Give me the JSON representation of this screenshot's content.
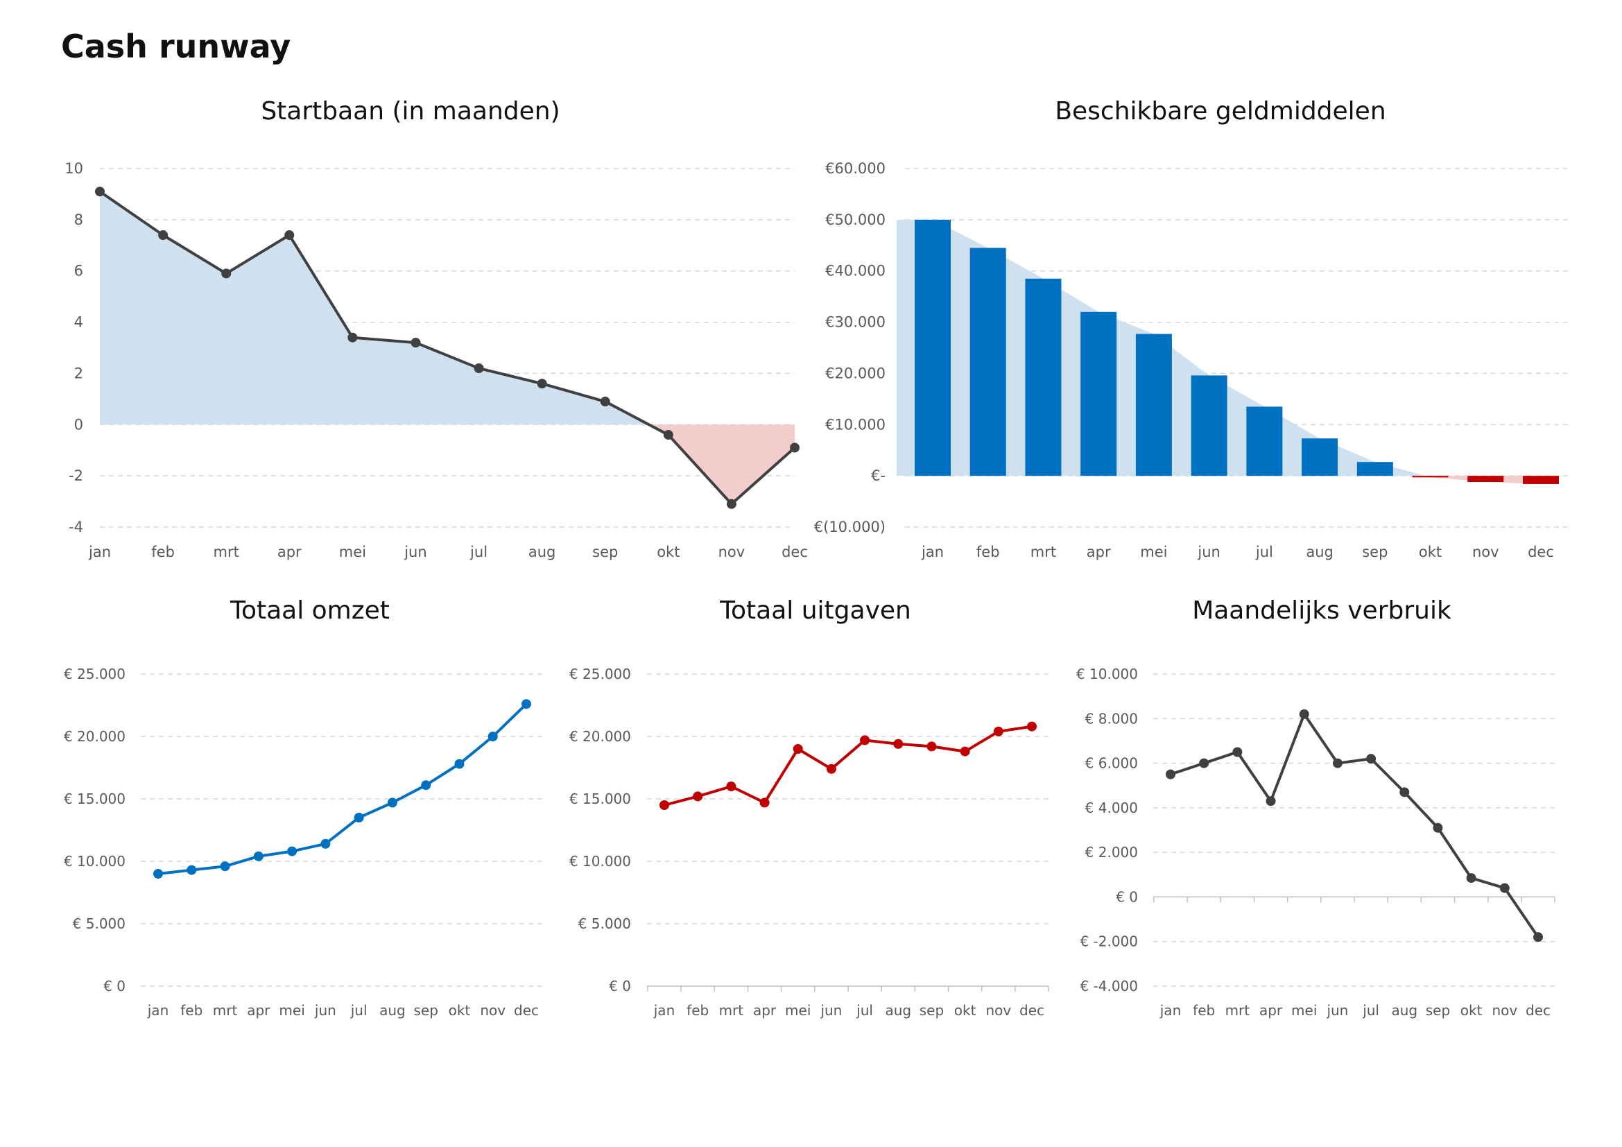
{
  "page": {
    "title": "Cash runway"
  },
  "colors": {
    "dark": "#404040",
    "blue": "#0070c0",
    "red": "#c00000",
    "area_blue": "#cfe0ef",
    "area_red": "#f3cccc",
    "grid": "#d6d6d6"
  },
  "chart_data": [
    {
      "id": "startbaan",
      "type": "line",
      "title": "Startbaan (in maanden)",
      "categories": [
        "jan",
        "feb",
        "mrt",
        "apr",
        "mei",
        "jun",
        "jul",
        "aug",
        "sep",
        "okt",
        "nov",
        "dec"
      ],
      "series": [
        {
          "values": [
            9.1,
            7.4,
            5.9,
            7.4,
            3.4,
            3.2,
            2.2,
            1.6,
            0.9,
            -0.4,
            -3.1,
            -0.9
          ]
        }
      ],
      "ylim": [
        -4,
        10
      ],
      "yticks": [
        10,
        8,
        6,
        4,
        2,
        0,
        -2,
        -4
      ],
      "ytick_labels": [
        "10",
        "8",
        "6",
        "4",
        "2",
        "0",
        "-2",
        "-4"
      ],
      "grid": true,
      "area_fill": true
    },
    {
      "id": "geldmiddelen",
      "type": "bar",
      "title": "Beschikbare geldmiddelen",
      "categories": [
        "jan",
        "feb",
        "mrt",
        "apr",
        "mei",
        "jun",
        "jul",
        "aug",
        "sep",
        "okt",
        "nov",
        "dec"
      ],
      "series": [
        {
          "values": [
            50000,
            44500,
            38500,
            32000,
            27700,
            19600,
            13500,
            7300,
            2700,
            -300,
            -1200,
            -1600
          ]
        }
      ],
      "ylim": [
        -10000,
        60000
      ],
      "yticks": [
        60000,
        50000,
        40000,
        30000,
        20000,
        10000,
        0,
        -10000
      ],
      "ytick_labels": [
        "€60.000",
        "€50.000",
        "€40.000",
        "€30.000",
        "€20.000",
        "€10.000",
        "€-",
        "€(10.000)"
      ],
      "grid": true,
      "area_fill": true
    },
    {
      "id": "omzet",
      "type": "line",
      "title": "Totaal omzet",
      "categories": [
        "jan",
        "feb",
        "mrt",
        "apr",
        "mei",
        "jun",
        "jul",
        "aug",
        "sep",
        "okt",
        "nov",
        "dec"
      ],
      "series": [
        {
          "values": [
            9000,
            9300,
            9600,
            10400,
            10800,
            11400,
            13500,
            14700,
            16100,
            17800,
            20000,
            22600
          ]
        }
      ],
      "ylim": [
        0,
        25000
      ],
      "yticks": [
        25000,
        20000,
        15000,
        10000,
        5000,
        0
      ],
      "ytick_labels": [
        "€ 25.000",
        "€ 20.000",
        "€ 15.000",
        "€ 10.000",
        "€ 5.000",
        "€ 0"
      ],
      "grid": true
    },
    {
      "id": "uitgaven",
      "type": "line",
      "title": "Totaal uitgaven",
      "categories": [
        "jan",
        "feb",
        "mrt",
        "apr",
        "mei",
        "jun",
        "jul",
        "aug",
        "sep",
        "okt",
        "nov",
        "dec"
      ],
      "series": [
        {
          "values": [
            14500,
            15200,
            16000,
            14700,
            19000,
            17400,
            19700,
            19400,
            19200,
            18800,
            20400,
            20800
          ]
        }
      ],
      "ylim": [
        0,
        25000
      ],
      "yticks": [
        25000,
        20000,
        15000,
        10000,
        5000,
        0
      ],
      "ytick_labels": [
        "€ 25.000",
        "€ 20.000",
        "€ 15.000",
        "€ 10.000",
        "€ 5.000",
        "€ 0"
      ],
      "grid": true
    },
    {
      "id": "verbruik",
      "type": "line",
      "title": "Maandelijks verbruik",
      "categories": [
        "jan",
        "feb",
        "mrt",
        "apr",
        "mei",
        "jun",
        "jul",
        "aug",
        "sep",
        "okt",
        "nov",
        "dec"
      ],
      "series": [
        {
          "values": [
            5500,
            6000,
            6500,
            4300,
            8200,
            6000,
            6200,
            4700,
            3100,
            850,
            400,
            -1800
          ]
        }
      ],
      "ylim": [
        -4000,
        10000
      ],
      "yticks": [
        10000,
        8000,
        6000,
        4000,
        2000,
        0,
        -2000,
        -4000
      ],
      "ytick_labels": [
        "€ 10.000",
        "€ 8.000",
        "€ 6.000",
        "€ 4.000",
        "€ 2.000",
        "€ 0",
        "€ -2.000",
        "€ -4.000"
      ],
      "grid": true
    }
  ]
}
